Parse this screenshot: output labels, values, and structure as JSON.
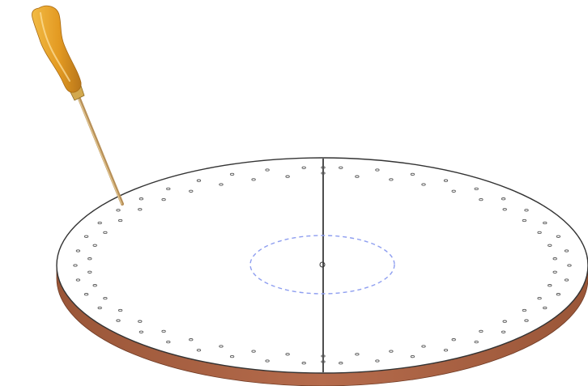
{
  "scene": {
    "objects": [
      "awl-tool",
      "circular-board",
      "dashed-center-circle",
      "center-line"
    ],
    "colors": {
      "board_top": "#ffffff",
      "board_outline": "#333333",
      "board_edge": "#b0664a",
      "board_edge_dark": "#8a4a33",
      "dashed_circle": "#8e9ef0",
      "center_line": "#222222",
      "awl_handle": "#e8a52a",
      "awl_handle_dark": "#b8761a",
      "awl_ferrule": "#c9a14a",
      "awl_shaft": "#c8a46a",
      "hole_dot": "#555555"
    },
    "holes": {
      "rings": 2,
      "per_ring": 42
    }
  }
}
